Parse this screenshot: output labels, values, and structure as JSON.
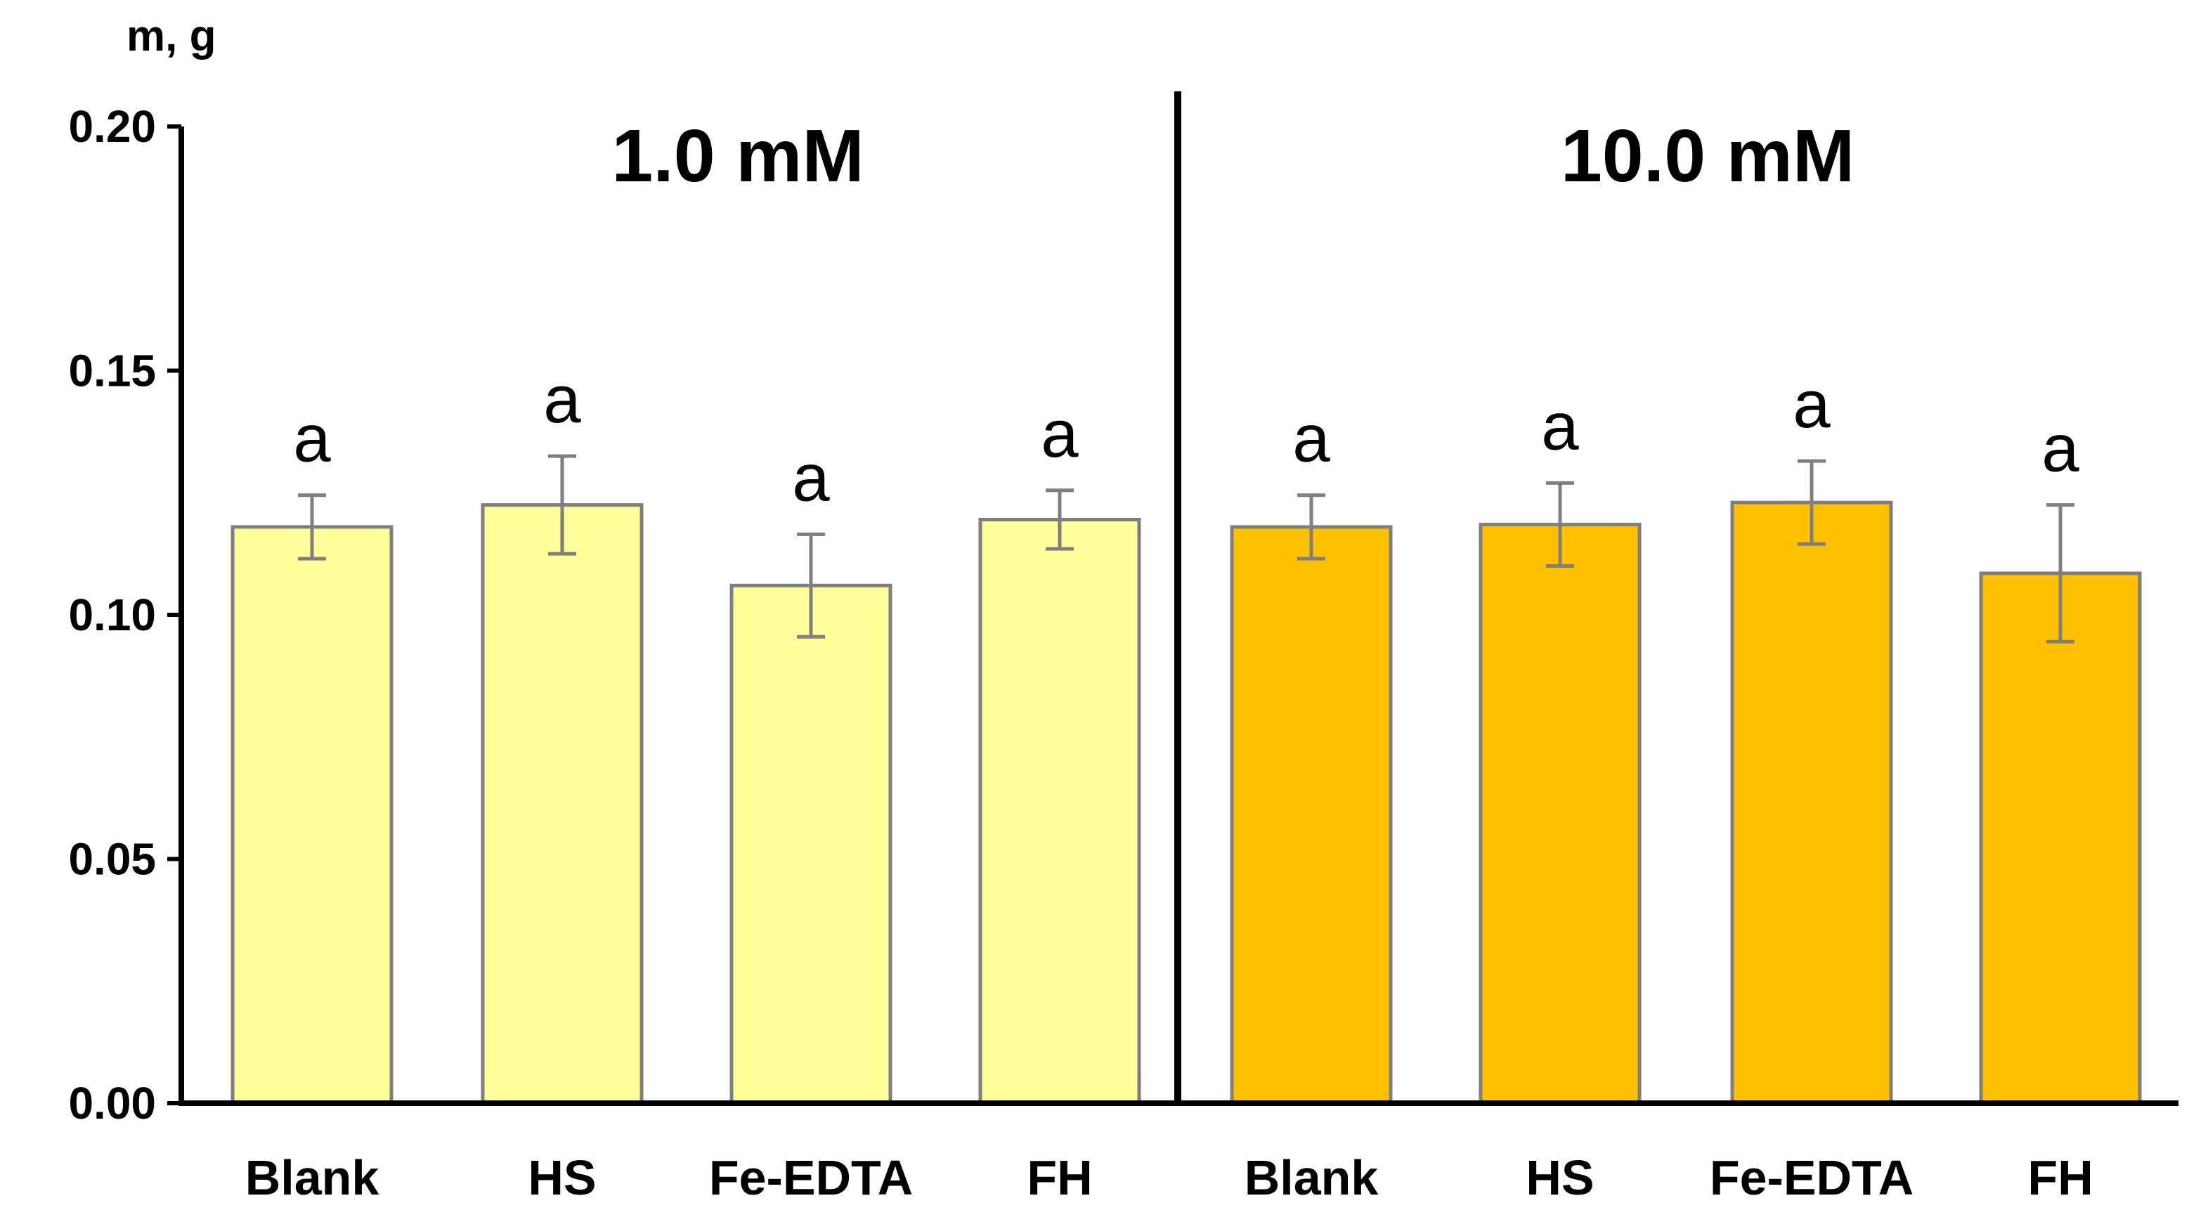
{
  "chart_data": {
    "type": "bar",
    "ylabel": "m, g",
    "ylim": [
      0,
      0.2
    ],
    "yticks": [
      "0.00",
      "0.05",
      "0.10",
      "0.15",
      "0.20"
    ],
    "grid": false,
    "colors": {
      "group_1": "#FFFF99",
      "group_2": "#FFC000",
      "bar_edge": "#7F7F7F",
      "error_bar": "#7F7F7F",
      "axis": "#000000"
    },
    "groups": [
      {
        "name": "1.0 mM",
        "categories": [
          "Blank",
          "HS",
          "Fe-EDTA",
          "FH"
        ],
        "values": [
          0.118,
          0.1225,
          0.106,
          0.1195
        ],
        "errors": [
          0.0065,
          0.01,
          0.0105,
          0.006
        ],
        "significance": [
          "a",
          "a",
          "a",
          "a"
        ]
      },
      {
        "name": "10.0 mM",
        "categories": [
          "Blank",
          "HS",
          "Fe-EDTA",
          "FH"
        ],
        "values": [
          0.118,
          0.1185,
          0.123,
          0.1085
        ],
        "errors": [
          0.0065,
          0.0085,
          0.0085,
          0.014
        ],
        "significance": [
          "a",
          "a",
          "a",
          "a"
        ]
      }
    ]
  }
}
